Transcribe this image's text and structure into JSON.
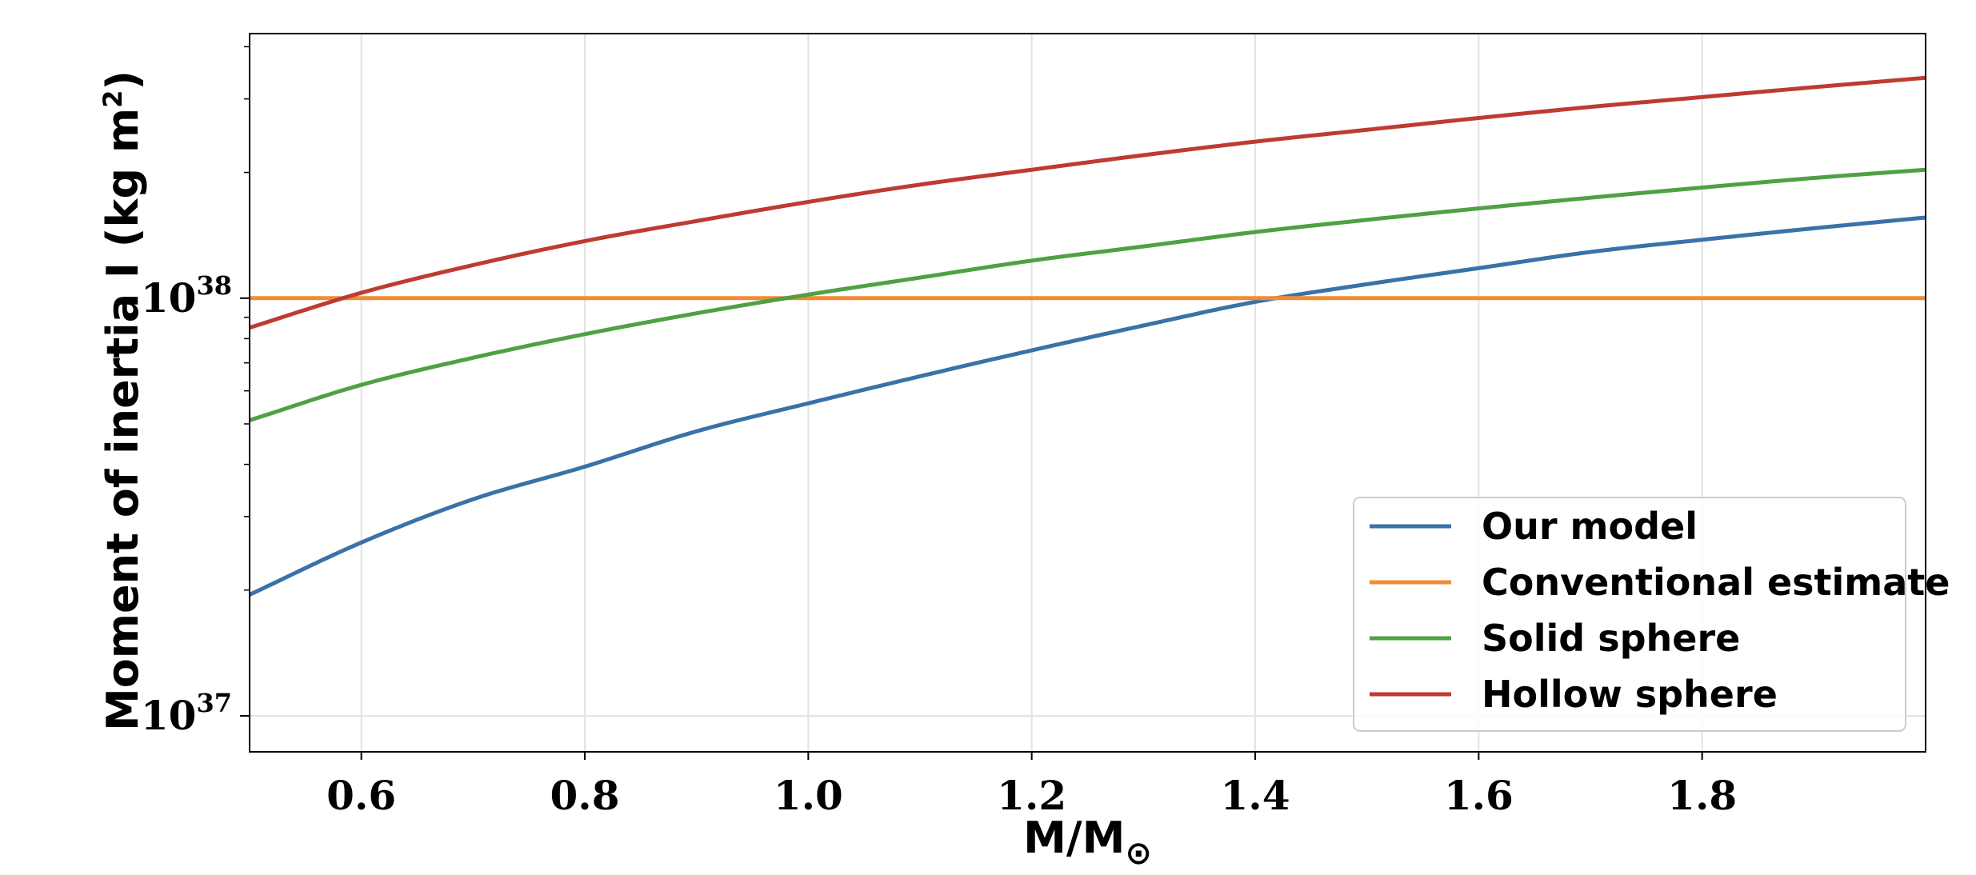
{
  "chart_data": {
    "type": "line",
    "xlabel_main": "M/M",
    "xlabel_sub": "⊙",
    "ylabel_main": "Moment of inertia I (kg m",
    "ylabel_sup": "2",
    "ylabel_end": ")",
    "xlim": [
      0.5,
      2.0
    ],
    "ylim": [
      8.2e+36,
      4.3e+38
    ],
    "yscale": "log",
    "grid": true,
    "legend_position": "lower-right",
    "x_ticks": [
      {
        "value": 0.6,
        "label": "0.6"
      },
      {
        "value": 0.8,
        "label": "0.8"
      },
      {
        "value": 1.0,
        "label": "1.0"
      },
      {
        "value": 1.2,
        "label": "1.2"
      },
      {
        "value": 1.4,
        "label": "1.4"
      },
      {
        "value": 1.6,
        "label": "1.6"
      },
      {
        "value": 1.8,
        "label": "1.8"
      }
    ],
    "y_major_ticks": [
      {
        "value": 1e+37,
        "base": "10",
        "exp": "37"
      },
      {
        "value": 1e+38,
        "base": "10",
        "exp": "38"
      }
    ],
    "y_minor_ticks": [
      2e+37,
      3e+37,
      4e+37,
      5e+37,
      6e+37,
      7e+37,
      8e+37,
      9e+37,
      2e+38,
      3e+38,
      4e+38
    ],
    "x": [
      0.5,
      0.6,
      0.7,
      0.8,
      0.9,
      1.0,
      1.1,
      1.2,
      1.3,
      1.4,
      1.5,
      1.6,
      1.7,
      1.8,
      1.9,
      2.0
    ],
    "series": [
      {
        "name": "Our model",
        "color": "#3a72a8",
        "values": [
          1.95e+37,
          2.6e+37,
          3.3e+37,
          3.95e+37,
          4.8e+37,
          5.6e+37,
          6.5e+37,
          7.5e+37,
          8.6e+37,
          9.8e+37,
          1.08e+38,
          1.18e+38,
          1.29e+38,
          1.38e+38,
          1.47e+38,
          1.56e+38
        ]
      },
      {
        "name": "Conventional estimate",
        "color": "#ef8c35",
        "values": [
          1e+38,
          1e+38,
          1e+38,
          1e+38,
          1e+38,
          1e+38,
          1e+38,
          1e+38,
          1e+38,
          1e+38,
          1e+38,
          1e+38,
          1e+38,
          1e+38,
          1e+38,
          1e+38
        ]
      },
      {
        "name": "Solid sphere",
        "color": "#50a045",
        "values": [
          5.1e+37,
          6.2e+37,
          7.2e+37,
          8.2e+37,
          9.2e+37,
          1.02e+38,
          1.12e+38,
          1.23e+38,
          1.33e+38,
          1.44e+38,
          1.54e+38,
          1.64e+38,
          1.74e+38,
          1.84e+38,
          1.94e+38,
          2.03e+38
        ]
      },
      {
        "name": "Hollow sphere",
        "color": "#be3b32",
        "values": [
          8.5e+37,
          1.03e+38,
          1.2e+38,
          1.37e+38,
          1.53e+38,
          1.7e+38,
          1.87e+38,
          2.03e+38,
          2.2e+38,
          2.37e+38,
          2.53e+38,
          2.7e+38,
          2.87e+38,
          3.03e+38,
          3.2e+38,
          3.37e+38
        ]
      }
    ]
  }
}
